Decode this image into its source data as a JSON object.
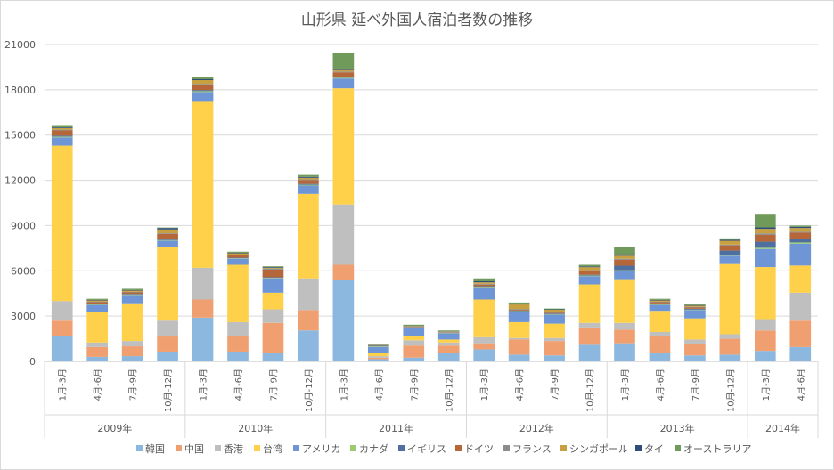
{
  "chart_data": {
    "type": "bar",
    "stacked": true,
    "title": "山形県 延べ外国人宿泊者数の推移",
    "ylim": [
      0,
      21000
    ],
    "yticks": [
      0,
      3000,
      6000,
      9000,
      12000,
      15000,
      18000,
      21000
    ],
    "ytick_labels": [
      "0",
      "3000",
      "6000",
      "9000",
      "12000",
      "15000",
      "18000",
      "21000"
    ],
    "gridlines": true,
    "legend_position": "bottom",
    "groups": [
      {
        "label": "2009年",
        "categories": [
          "1月-3月",
          "4月-6月",
          "7月-9月",
          "10月-12月"
        ]
      },
      {
        "label": "2010年",
        "categories": [
          "1月-3月",
          "4月-6月",
          "7月-9月",
          "10月-12月"
        ]
      },
      {
        "label": "2011年",
        "categories": [
          "1月-3月",
          "4月-6月",
          "7月-9月",
          "10月-12月"
        ]
      },
      {
        "label": "2012年",
        "categories": [
          "1月-3月",
          "4月-6月",
          "7月-9月",
          "10月-12月"
        ]
      },
      {
        "label": "2013年",
        "categories": [
          "1月-3月",
          "4月-6月",
          "7月-9月",
          "10月-12月"
        ]
      },
      {
        "label": "2014年",
        "categories": [
          "1月-3月",
          "4月-6月"
        ]
      }
    ],
    "series": [
      {
        "name": "韓国",
        "color": "#8cb8e0",
        "values": [
          1700,
          300,
          350,
          650,
          2900,
          650,
          550,
          2050,
          5400,
          150,
          250,
          550,
          800,
          450,
          400,
          1100,
          1200,
          550,
          400,
          450,
          700,
          950
        ]
      },
      {
        "name": "中国",
        "color": "#f0a070",
        "values": [
          1000,
          650,
          650,
          1000,
          1200,
          1050,
          2000,
          1350,
          1000,
          100,
          800,
          500,
          400,
          1000,
          950,
          1150,
          900,
          1100,
          750,
          1050,
          1350,
          1750
        ]
      },
      {
        "name": "香港",
        "color": "#bfbfbf",
        "values": [
          1300,
          300,
          350,
          1050,
          2100,
          900,
          900,
          2100,
          4000,
          100,
          350,
          200,
          400,
          100,
          200,
          300,
          450,
          300,
          300,
          300,
          750,
          1850
        ]
      },
      {
        "name": "台湾",
        "color": "#ffd04a",
        "values": [
          10300,
          2000,
          2500,
          4900,
          11000,
          3800,
          1100,
          5600,
          7700,
          200,
          300,
          200,
          2500,
          1050,
          950,
          2550,
          2900,
          1400,
          1400,
          4650,
          3450,
          1800
        ]
      },
      {
        "name": "アメリカ",
        "color": "#6e96d6",
        "values": [
          550,
          500,
          550,
          400,
          650,
          400,
          950,
          550,
          650,
          400,
          500,
          400,
          800,
          700,
          600,
          550,
          550,
          400,
          550,
          550,
          1200,
          1450
        ]
      },
      {
        "name": "カナダ",
        "color": "#9acb70",
        "values": [
          50,
          30,
          30,
          40,
          60,
          30,
          30,
          50,
          50,
          40,
          30,
          20,
          40,
          30,
          30,
          40,
          40,
          30,
          30,
          40,
          80,
          80
        ]
      },
      {
        "name": "イギリス",
        "color": "#4e6f9f",
        "values": [
          60,
          40,
          40,
          50,
          70,
          40,
          50,
          60,
          60,
          50,
          30,
          30,
          50,
          40,
          40,
          50,
          300,
          60,
          60,
          300,
          400,
          250
        ]
      },
      {
        "name": "ドイツ",
        "color": "#b5673a",
        "values": [
          350,
          100,
          100,
          350,
          350,
          150,
          500,
          250,
          300,
          20,
          30,
          30,
          100,
          50,
          50,
          250,
          400,
          80,
          80,
          350,
          450,
          400
        ]
      },
      {
        "name": "フランス",
        "color": "#8c8c8c",
        "values": [
          50,
          40,
          40,
          50,
          60,
          40,
          60,
          50,
          50,
          20,
          20,
          20,
          50,
          50,
          50,
          50,
          60,
          40,
          40,
          50,
          100,
          60
        ]
      },
      {
        "name": "シンガポール",
        "color": "#c9a03f",
        "values": [
          100,
          80,
          80,
          250,
          250,
          100,
          50,
          100,
          100,
          10,
          20,
          20,
          100,
          300,
          150,
          200,
          200,
          80,
          80,
          250,
          300,
          250
        ]
      },
      {
        "name": "タイ",
        "color": "#2e4f7a",
        "values": [
          50,
          40,
          40,
          100,
          60,
          40,
          50,
          60,
          100,
          10,
          20,
          20,
          70,
          30,
          30,
          50,
          100,
          40,
          40,
          60,
          100,
          80
        ]
      },
      {
        "name": "オーストラリア",
        "color": "#6f9a5a",
        "values": [
          150,
          70,
          80,
          30,
          150,
          70,
          60,
          130,
          1050,
          30,
          80,
          60,
          190,
          100,
          50,
          110,
          450,
          70,
          80,
          100,
          900,
          80
        ]
      }
    ]
  }
}
